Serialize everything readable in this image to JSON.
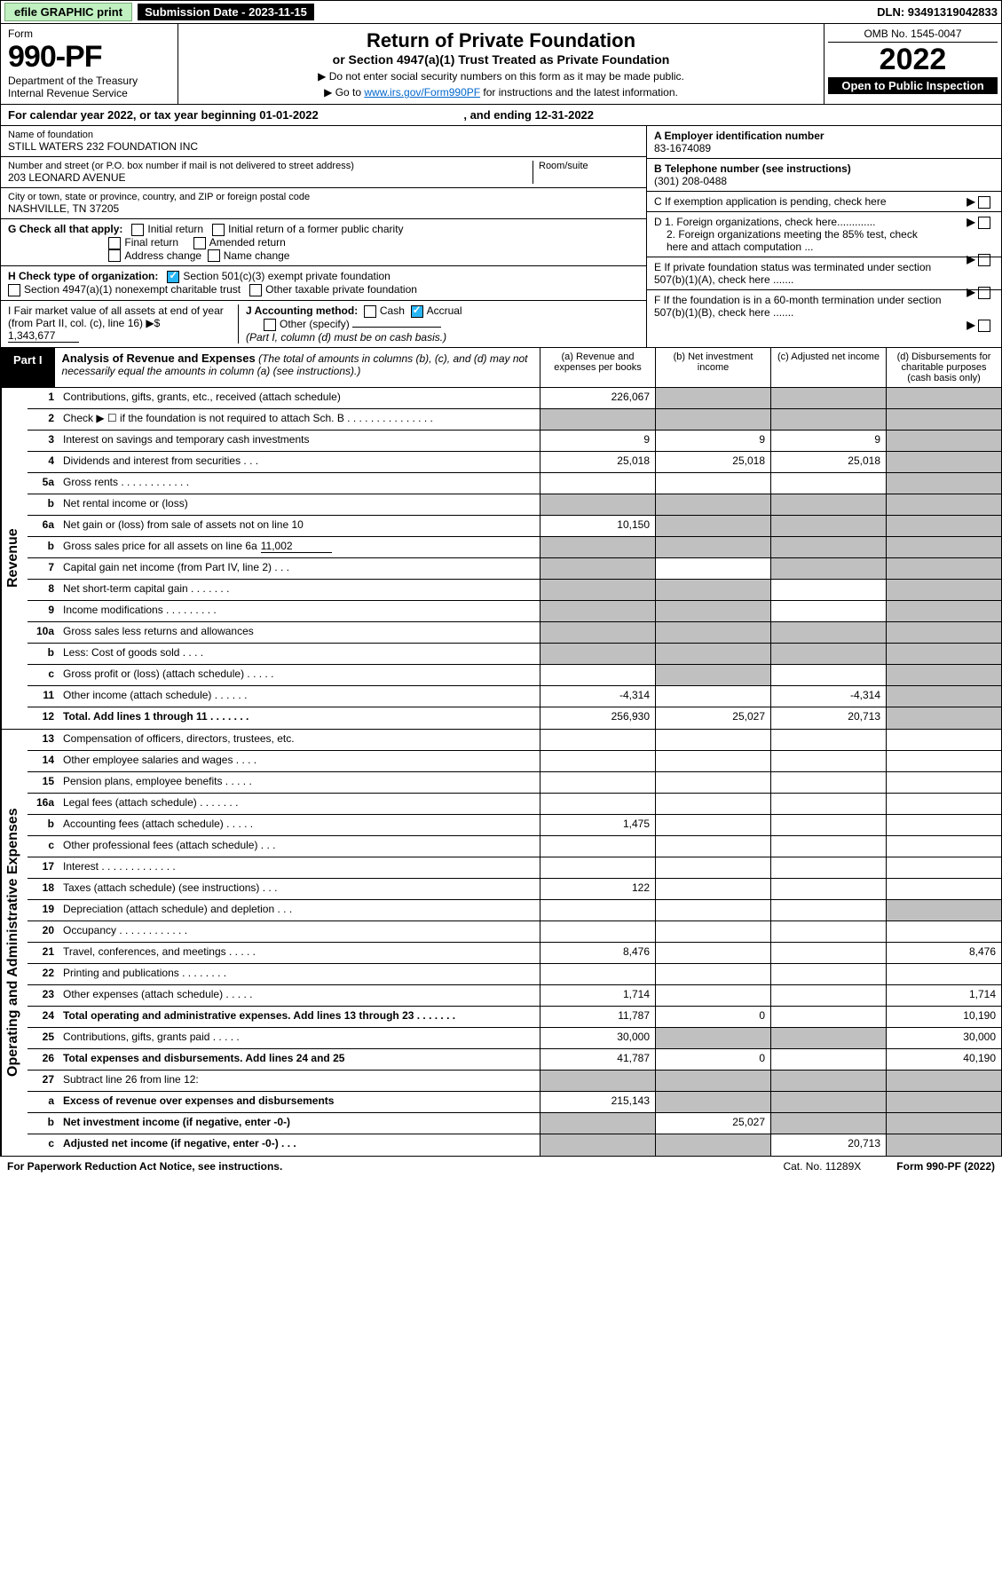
{
  "topbar": {
    "efile": "efile GRAPHIC print",
    "sub_label": "Submission Date - 2023-11-15",
    "dln": "DLN: 93491319042833"
  },
  "header": {
    "form_label": "Form",
    "form_num": "990-PF",
    "dept": "Department of the Treasury\nInternal Revenue Service",
    "title": "Return of Private Foundation",
    "subtitle": "or Section 4947(a)(1) Trust Treated as Private Foundation",
    "note1": "▶ Do not enter social security numbers on this form as it may be made public.",
    "note2_pre": "▶ Go to ",
    "note2_link": "www.irs.gov/Form990PF",
    "note2_post": " for instructions and the latest information.",
    "omb": "OMB No. 1545-0047",
    "year": "2022",
    "open": "Open to Public Inspection"
  },
  "calyear": {
    "pre": "For calendar year 2022, or tax year beginning ",
    "begin": "01-01-2022",
    "mid": " , and ending ",
    "end": "12-31-2022"
  },
  "info": {
    "name_label": "Name of foundation",
    "name": "STILL WATERS 232 FOUNDATION INC",
    "addr_label": "Number and street (or P.O. box number if mail is not delivered to street address)",
    "addr": "203 LEONARD AVENUE",
    "room_label": "Room/suite",
    "city_label": "City or town, state or province, country, and ZIP or foreign postal code",
    "city": "NASHVILLE, TN  37205",
    "ein_label": "A Employer identification number",
    "ein": "83-1674089",
    "phone_label": "B Telephone number (see instructions)",
    "phone": "(301) 208-0488",
    "c": "C If exemption application is pending, check here",
    "d1": "D 1. Foreign organizations, check here.............",
    "d2": "2. Foreign organizations meeting the 85% test, check here and attach computation ...",
    "e": "E If private foundation status was terminated under section 507(b)(1)(A), check here .......",
    "f": "F If the foundation is in a 60-month termination under section 507(b)(1)(B), check here .......",
    "g_label": "G Check all that apply:",
    "g_initial": "Initial return",
    "g_initial_former": "Initial return of a former public charity",
    "g_final": "Final return",
    "g_amended": "Amended return",
    "g_address": "Address change",
    "g_name": "Name change",
    "h_label": "H Check type of organization:",
    "h_501c3": "Section 501(c)(3) exempt private foundation",
    "h_4947": "Section 4947(a)(1) nonexempt charitable trust",
    "h_other": "Other taxable private foundation",
    "i_label": "I Fair market value of all assets at end of year (from Part II, col. (c), line 16) ▶$",
    "i_val": "1,343,677",
    "j_label": "J Accounting method:",
    "j_cash": "Cash",
    "j_accrual": "Accrual",
    "j_other": "Other (specify)",
    "j_note": "(Part I, column (d) must be on cash basis.)"
  },
  "part1": {
    "tag": "Part I",
    "title": "Analysis of Revenue and Expenses",
    "title_note": "(The total of amounts in columns (b), (c), and (d) may not necessarily equal the amounts in column (a) (see instructions).)",
    "col_a": "(a) Revenue and expenses per books",
    "col_b": "(b) Net investment income",
    "col_c": "(c) Adjusted net income",
    "col_d": "(d) Disbursements for charitable purposes (cash basis only)"
  },
  "sections": {
    "revenue": "Revenue",
    "expenses": "Operating and Administrative Expenses"
  },
  "rows": {
    "r1": {
      "n": "1",
      "d": "Contributions, gifts, grants, etc., received (attach schedule)",
      "a": "226,067"
    },
    "r2": {
      "n": "2",
      "d": "Check ▶ ☐ if the foundation is not required to attach Sch. B  .  .  .  .  .  .  .  .  .  .  .  .  .  .  ."
    },
    "r3": {
      "n": "3",
      "d": "Interest on savings and temporary cash investments",
      "a": "9",
      "b": "9",
      "c": "9"
    },
    "r4": {
      "n": "4",
      "d": "Dividends and interest from securities  .  .  .",
      "a": "25,018",
      "b": "25,018",
      "c": "25,018"
    },
    "r5a": {
      "n": "5a",
      "d": "Gross rents  .  .  .  .  .  .  .  .  .  .  .  ."
    },
    "r5b": {
      "n": "b",
      "d": "Net rental income or (loss)"
    },
    "r6a": {
      "n": "6a",
      "d": "Net gain or (loss) from sale of assets not on line 10",
      "a": "10,150"
    },
    "r6b": {
      "n": "b",
      "d": "Gross sales price for all assets on line 6a",
      "v": "11,002"
    },
    "r7": {
      "n": "7",
      "d": "Capital gain net income (from Part IV, line 2)  .  .  ."
    },
    "r8": {
      "n": "8",
      "d": "Net short-term capital gain  .  .  .  .  .  .  ."
    },
    "r9": {
      "n": "9",
      "d": "Income modifications  .  .  .  .  .  .  .  .  ."
    },
    "r10a": {
      "n": "10a",
      "d": "Gross sales less returns and allowances"
    },
    "r10b": {
      "n": "b",
      "d": "Less: Cost of goods sold  .  .  .  ."
    },
    "r10c": {
      "n": "c",
      "d": "Gross profit or (loss) (attach schedule)  .  .  .  .  ."
    },
    "r11": {
      "n": "11",
      "d": "Other income (attach schedule)  .  .  .  .  .  .",
      "a": "-4,314",
      "c": "-4,314"
    },
    "r12": {
      "n": "12",
      "d": "Total. Add lines 1 through 11  .  .  .  .  .  .  .",
      "a": "256,930",
      "b": "25,027",
      "c": "20,713"
    },
    "r13": {
      "n": "13",
      "d": "Compensation of officers, directors, trustees, etc."
    },
    "r14": {
      "n": "14",
      "d": "Other employee salaries and wages  .  .  .  ."
    },
    "r15": {
      "n": "15",
      "d": "Pension plans, employee benefits  .  .  .  .  ."
    },
    "r16a": {
      "n": "16a",
      "d": "Legal fees (attach schedule)  .  .  .  .  .  .  ."
    },
    "r16b": {
      "n": "b",
      "d": "Accounting fees (attach schedule)  .  .  .  .  .",
      "a": "1,475"
    },
    "r16c": {
      "n": "c",
      "d": "Other professional fees (attach schedule)  .  .  ."
    },
    "r17": {
      "n": "17",
      "d": "Interest  .  .  .  .  .  .  .  .  .  .  .  .  ."
    },
    "r18": {
      "n": "18",
      "d": "Taxes (attach schedule) (see instructions)  .  .  .",
      "a": "122"
    },
    "r19": {
      "n": "19",
      "d": "Depreciation (attach schedule) and depletion  .  .  ."
    },
    "r20": {
      "n": "20",
      "d": "Occupancy  .  .  .  .  .  .  .  .  .  .  .  ."
    },
    "r21": {
      "n": "21",
      "d": "Travel, conferences, and meetings  .  .  .  .  .",
      "a": "8,476",
      "dd": "8,476"
    },
    "r22": {
      "n": "22",
      "d": "Printing and publications  .  .  .  .  .  .  .  ."
    },
    "r23": {
      "n": "23",
      "d": "Other expenses (attach schedule)  .  .  .  .  .",
      "a": "1,714",
      "dd": "1,714"
    },
    "r24": {
      "n": "24",
      "d": "Total operating and administrative expenses. Add lines 13 through 23  .  .  .  .  .  .  .",
      "a": "11,787",
      "b": "0",
      "dd": "10,190"
    },
    "r25": {
      "n": "25",
      "d": "Contributions, gifts, grants paid  .  .  .  .  .",
      "a": "30,000",
      "dd": "30,000"
    },
    "r26": {
      "n": "26",
      "d": "Total expenses and disbursements. Add lines 24 and 25",
      "a": "41,787",
      "b": "0",
      "dd": "40,190"
    },
    "r27": {
      "n": "27",
      "d": "Subtract line 26 from line 12:"
    },
    "r27a": {
      "n": "a",
      "d": "Excess of revenue over expenses and disbursements",
      "a": "215,143"
    },
    "r27b": {
      "n": "b",
      "d": "Net investment income (if negative, enter -0-)",
      "b": "25,027"
    },
    "r27c": {
      "n": "c",
      "d": "Adjusted net income (if negative, enter -0-)  .  .  .",
      "c": "20,713"
    }
  },
  "footer": {
    "pra": "For Paperwork Reduction Act Notice, see instructions.",
    "cat": "Cat. No. 11289X",
    "form": "Form 990-PF (2022)"
  }
}
